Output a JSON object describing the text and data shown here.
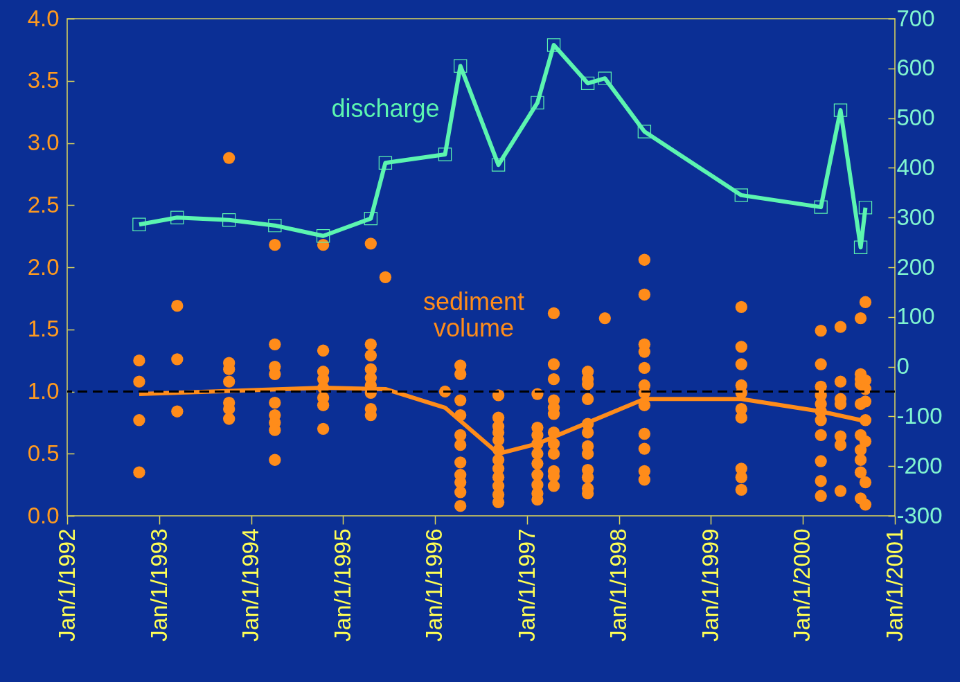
{
  "chart_data": {
    "type": "scatter",
    "grid": false,
    "xlim": [
      "1992-01-01",
      "2001-01-01"
    ],
    "xticks": [
      {
        "value": "1992-01-01",
        "label": "Jan/1/1992"
      },
      {
        "value": "1993-01-01",
        "label": "Jan/1/1993"
      },
      {
        "value": "1994-01-01",
        "label": "Jan/1/1994"
      },
      {
        "value": "1995-01-01",
        "label": "Jan/1/1995"
      },
      {
        "value": "1996-01-01",
        "label": "Jan/1/1996"
      },
      {
        "value": "1997-01-01",
        "label": "Jan/1/1997"
      },
      {
        "value": "1998-01-01",
        "label": "Jan/1/1998"
      },
      {
        "value": "1999-01-01",
        "label": "Jan/1/1999"
      },
      {
        "value": "2000-01-01",
        "label": "Jan/1/2000"
      },
      {
        "value": "2001-01-01",
        "label": "Jan/1/2001"
      }
    ],
    "ylim": [
      0,
      4
    ],
    "yticks": [
      {
        "value": 0,
        "label": "0.0"
      },
      0.5,
      {
        "value": 1,
        "label": "1.0"
      },
      1.5,
      {
        "value": 2,
        "label": "2.0"
      },
      2.5,
      {
        "value": 3,
        "label": "3.0"
      },
      3.5,
      {
        "value": 4,
        "label": "4.0"
      }
    ],
    "y2lim": [
      -300,
      700
    ],
    "y2ticks": [
      -300,
      -200,
      -100,
      0,
      100,
      200,
      300,
      400,
      500,
      600,
      700
    ],
    "ref_lines": [
      {
        "axis": "y",
        "value": 1,
        "color": "#000000",
        "line_style": "dashed"
      }
    ],
    "series": [
      {
        "name": "sediment volume",
        "marker": "circle",
        "color": "#ff8c1a",
        "x": [
          "1992-10-13",
          "1992-10-13",
          "1992-10-13",
          "1992-10-13",
          "1993-03-13",
          "1993-03-13",
          "1993-03-13",
          "1993-10-05",
          "1993-10-05",
          "1993-10-05",
          "1993-10-05",
          "1993-10-05",
          "1993-10-05",
          "1993-10-05",
          "1994-04-05",
          "1994-04-05",
          "1994-04-05",
          "1994-04-05",
          "1994-04-05",
          "1994-04-05",
          "1994-04-05",
          "1994-04-05",
          "1994-04-05",
          "1994-10-14",
          "1994-10-14",
          "1994-10-14",
          "1994-10-14",
          "1994-10-14",
          "1994-10-14",
          "1994-10-14",
          "1994-10-14",
          "1995-04-21",
          "1995-04-21",
          "1995-04-21",
          "1995-04-21",
          "1995-04-21",
          "1995-04-21",
          "1995-04-21",
          "1995-04-21",
          "1995-04-21",
          "1995-06-18",
          "1996-02-10",
          "1996-04-11",
          "1996-04-11",
          "1996-04-11",
          "1996-04-11",
          "1996-04-11",
          "1996-04-11",
          "1996-04-11",
          "1996-04-11",
          "1996-04-11",
          "1996-04-11",
          "1996-04-11",
          "1996-09-09",
          "1996-09-09",
          "1996-09-09",
          "1996-09-09",
          "1996-09-09",
          "1996-09-09",
          "1996-09-09",
          "1996-09-09",
          "1996-09-09",
          "1996-09-09",
          "1996-09-09",
          "1996-09-09",
          "1997-02-11",
          "1997-02-11",
          "1997-02-11",
          "1997-02-11",
          "1997-02-11",
          "1997-02-11",
          "1997-02-11",
          "1997-02-11",
          "1997-02-11",
          "1997-02-11",
          "1997-04-17",
          "1997-04-17",
          "1997-04-17",
          "1997-04-17",
          "1997-04-17",
          "1997-04-17",
          "1997-04-17",
          "1997-04-17",
          "1997-04-17",
          "1997-04-17",
          "1997-04-17",
          "1997-04-17",
          "1997-08-30",
          "1997-08-30",
          "1997-08-30",
          "1997-08-30",
          "1997-08-30",
          "1997-08-30",
          "1997-08-30",
          "1997-08-30",
          "1997-08-30",
          "1997-08-30",
          "1997-08-30",
          "1997-08-30",
          "1997-11-06",
          "1998-04-12",
          "1998-04-12",
          "1998-04-12",
          "1998-04-12",
          "1998-04-12",
          "1998-04-12",
          "1998-04-12",
          "1998-04-12",
          "1998-04-12",
          "1998-04-12",
          "1998-04-12",
          "1998-04-12",
          "1999-05-02",
          "1999-05-02",
          "1999-05-02",
          "1999-05-02",
          "1999-05-02",
          "1999-05-02",
          "1999-05-02",
          "1999-05-02",
          "1999-05-02",
          "1999-05-02",
          "2000-03-13",
          "2000-03-13",
          "2000-03-13",
          "2000-03-13",
          "2000-03-13",
          "2000-03-13",
          "2000-03-13",
          "2000-03-13",
          "2000-03-13",
          "2000-03-13",
          "2000-03-13",
          "2000-05-30",
          "2000-05-30",
          "2000-05-30",
          "2000-05-30",
          "2000-05-30",
          "2000-05-30",
          "2000-05-30",
          "2000-08-18",
          "2000-08-18",
          "2000-08-18",
          "2000-08-18",
          "2000-08-18",
          "2000-08-18",
          "2000-08-18",
          "2000-08-18",
          "2000-08-18",
          "2000-08-18",
          "2000-09-06",
          "2000-09-06",
          "2000-09-06",
          "2000-09-06",
          "2000-09-06",
          "2000-09-06",
          "2000-09-06",
          "2000-09-06"
        ],
        "values": [
          1.25,
          1.08,
          0.77,
          0.35,
          1.69,
          1.26,
          0.84,
          2.88,
          1.23,
          1.18,
          1.08,
          0.91,
          0.86,
          0.78,
          2.18,
          1.38,
          1.2,
          1.14,
          0.91,
          0.81,
          0.75,
          0.69,
          0.45,
          2.18,
          1.33,
          1.16,
          1.1,
          1.03,
          0.95,
          0.89,
          0.7,
          2.19,
          1.38,
          1.29,
          1.18,
          1.11,
          1.05,
          0.99,
          0.86,
          0.81,
          1.92,
          1.0,
          1.21,
          1.14,
          0.93,
          0.81,
          0.65,
          0.57,
          0.43,
          0.33,
          0.27,
          0.19,
          0.08,
          0.97,
          0.79,
          0.72,
          0.67,
          0.61,
          0.53,
          0.45,
          0.38,
          0.31,
          0.24,
          0.17,
          0.11,
          0.98,
          0.71,
          0.65,
          0.58,
          0.5,
          0.42,
          0.33,
          0.25,
          0.18,
          0.13,
          1.63,
          1.22,
          1.1,
          0.93,
          0.87,
          0.82,
          0.67,
          0.58,
          0.5,
          0.36,
          0.32,
          0.24,
          1.16,
          1.1,
          1.06,
          0.94,
          0.74,
          0.67,
          0.56,
          0.5,
          0.37,
          0.31,
          0.22,
          0.18,
          1.59,
          2.06,
          1.78,
          1.38,
          1.32,
          1.19,
          1.05,
          0.99,
          0.89,
          0.66,
          0.54,
          0.36,
          0.29,
          1.68,
          1.36,
          1.22,
          1.05,
          0.99,
          0.86,
          0.79,
          0.38,
          0.31,
          0.21,
          1.49,
          1.22,
          1.04,
          0.97,
          0.9,
          0.84,
          0.77,
          0.65,
          0.44,
          0.28,
          0.16,
          1.52,
          1.08,
          0.94,
          0.9,
          0.64,
          0.57,
          0.2,
          1.59,
          1.14,
          1.1,
          1.06,
          0.9,
          0.65,
          0.53,
          0.45,
          0.35,
          0.14,
          1.72,
          1.09,
          1.02,
          0.92,
          0.77,
          0.6,
          0.27,
          0.09
        ]
      },
      {
        "type": "line",
        "marker": "none",
        "color": "#ff8c1a",
        "x": [
          "1992-10-13",
          "1994-10-14",
          "1995-06-18",
          "1996-02-10",
          "1996-09-09",
          "1997-02-11",
          "1997-08-30",
          "1998-04-12",
          "1999-05-02",
          "2000-03-13",
          "2000-08-18"
        ],
        "values": [
          0.98,
          1.03,
          1.02,
          0.87,
          0.5,
          0.58,
          0.75,
          0.94,
          0.94,
          0.84,
          0.77
        ]
      },
      {
        "name": "discharge",
        "type": "line",
        "axis": "y2",
        "marker": "square",
        "color": "#5cf5b0",
        "x": [
          "1992-10-13",
          "1993-03-13",
          "1993-10-05",
          "1994-04-05",
          "1994-10-14",
          "1995-04-21",
          "1995-06-18",
          "1996-02-10",
          "1996-04-11",
          "1996-09-09",
          "1997-02-11",
          "1997-04-17",
          "1997-08-30",
          "1997-11-06",
          "1998-04-12",
          "1999-05-02",
          "2000-03-13",
          "2000-05-30",
          "2000-08-18",
          "2000-09-06"
        ],
        "values": [
          286,
          300,
          295,
          284,
          263,
          298,
          410,
          427,
          605,
          406,
          531,
          647,
          570,
          580,
          473,
          345,
          321,
          516,
          240,
          320
        ]
      }
    ]
  }
}
